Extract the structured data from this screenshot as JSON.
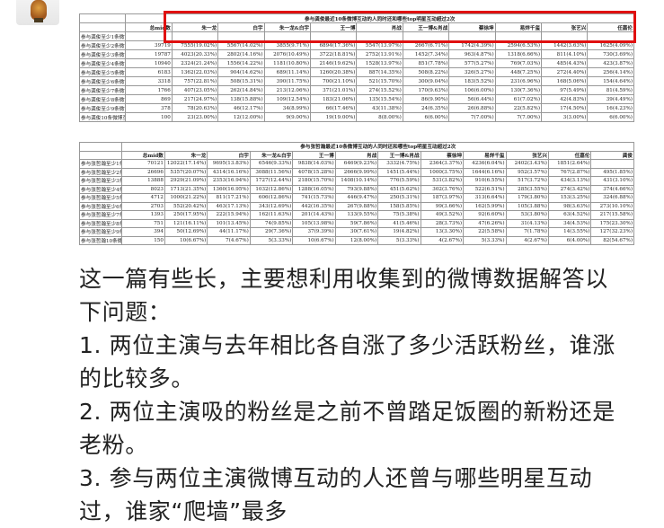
{
  "accent_color": "#e01010",
  "avatar": {
    "icon": "cartoon-character-avatar"
  },
  "table1": {
    "title": "参与龚俊最近10条微博互动的人同时还和哪些top明星互动超过2次",
    "headers": [
      "",
      "总mid数",
      "朱一龙",
      "白宇",
      "朱一龙&白宇",
      "王一博",
      "肖战",
      "王一博&肖战",
      "蔡徐坤",
      "易烊千玺",
      "张艺兴",
      "任嘉伦"
    ],
    "rows": [
      [
        "参与龚俊至少1条微博互动",
        "",
        "",
        "",
        "",
        "",
        "",
        "",
        "",
        "",
        "",
        ""
      ],
      [
        "参与龚俊至少2条微博互动",
        "39719",
        "7555(19.02%)",
        "5567(14.02%)",
        "3855(9.71%)",
        "6894(17.36%)",
        "5547(13.97%)",
        "2667(6.71%)",
        "1742(4.39%)",
        "2594(6.53%)",
        "1442(3.63%)",
        "1625(4.09%)"
      ],
      [
        "参与龚俊至少3条微博互动",
        "19787",
        "4023(20.33%)",
        "2802(14.16%)",
        "2076(10.49%)",
        "3722(18.81%)",
        "2752(13.91%)",
        "1452(7.34%)",
        "963(4.87%)",
        "1318(6.66%)",
        "811(4.10%)",
        "730(3.69%)"
      ],
      [
        "参与龚俊至少4条微博互动",
        "10940",
        "2324(21.24%)",
        "1556(14.22%)",
        "1181(10.80%)",
        "2146(19.62%)",
        "1528(13.97%)",
        "851(7.78%)",
        "577(5.27%)",
        "769(7.03%)",
        "485(4.43%)",
        "423(3.87%)"
      ],
      [
        "参与龚俊至少5条微博互动",
        "6183",
        "1362(22.03%)",
        "904(14.62%)",
        "689(11.14%)",
        "1260(20.38%)",
        "887(14.35%)",
        "508(8.22%)",
        "326(5.27%)",
        "448(7.25%)",
        "272(4.40%)",
        "256(4.14%)"
      ],
      [
        "参与龚俊至少6条微博互动",
        "3318",
        "757(22.81%)",
        "508(15.31%)",
        "390(11.75%)",
        "700(21.10%)",
        "521(15.70%)",
        "300(9.04%)",
        "183(5.52%)",
        "231(6.96%)",
        "168(5.06%)",
        "154(4.64%)"
      ],
      [
        "参与龚俊至少7条微博互动",
        "1766",
        "407(23.05%)",
        "262(14.84%)",
        "213(12.06%)",
        "371(21.01%)",
        "274(15.52%)",
        "170(9.63%)",
        "106(6.00%)",
        "130(7.36%)",
        "97(5.49%)",
        "81(4.59%)"
      ],
      [
        "参与龚俊至少8条微博互动",
        "869",
        "217(24.97%)",
        "138(15.88%)",
        "109(12.54%)",
        "183(21.06%)",
        "135(15.54%)",
        "86(9.90%)",
        "56(6.44%)",
        "61(7.02%)",
        "42(4.83%)",
        "39(4.49%)"
      ],
      [
        "参与龚俊至少9条微博互动",
        "378",
        "78(20.63%)",
        "46(12.17%)",
        "34(8.99%)",
        "66(17.46%)",
        "43(11.38%)",
        "24(6.35%)",
        "26(6.88%)",
        "22(5.82%)",
        "17(4.50%)",
        "16(4.23%)"
      ],
      [
        "参与龚俊10条微博互动",
        "100",
        "23(23.00%)",
        "12(12.00%)",
        "9(9.00%)",
        "19(19.00%)",
        "8(8.00%)",
        "6(6.00%)",
        "7(7.00%)",
        "7(7.00%)",
        "3(3.00%)",
        "6(6.00%)"
      ]
    ]
  },
  "table2": {
    "title": "参与张哲瀚最近10条微博互动的人同时还和哪些top明星互动超过2次",
    "headers": [
      "",
      "总mid数",
      "朱一龙",
      "白宇",
      "朱一龙&白宇",
      "王一博",
      "肖战",
      "王一博&肖战",
      "蔡徐坤",
      "易烊千玺",
      "张艺兴",
      "任嘉伦",
      "龚俊"
    ],
    "rows": [
      [
        "参与张哲瀚至少1条微博互动",
        "70121",
        "12022(17.14%)",
        "9695(13.83%)",
        "6546(9.33%)",
        "9838(14.03%)",
        "6469(9.23%)",
        "3332(4.75%)",
        "2364(3.37%)",
        "4236(6.04%)",
        "2402(3.43%)",
        "1851(2.64%)",
        ""
      ],
      [
        "参与张哲瀚至少2条微博互动",
        "26696",
        "5357(20.07%)",
        "4314(16.16%)",
        "3088(11.56%)",
        "4078(15.28%)",
        "2666(9.99%)",
        "1451(5.44%)",
        "1000(3.75%)",
        "1644(6.16%)",
        "952(3.57%)",
        "767(2.87%)",
        "495(1.85%)"
      ],
      [
        "参与张哲瀚至少3条微博互动",
        "13888",
        "2929(21.09%)",
        "2353(16.94%)",
        "1727(12.44%)",
        "2180(15.70%)",
        "1408(10.14%)",
        "776(5.59%)",
        "531(3.82%)",
        "910(6.55%)",
        "517(3.72%)",
        "434(3.13%)",
        "431(3.10%)"
      ],
      [
        "参与张哲瀚至少4条微博互动",
        "8023",
        "1713(21.35%)",
        "1360(16.95%)",
        "1032(12.86%)",
        "1288(16.05%)",
        "793(9.88%)",
        "451(5.62%)",
        "302(3.76%)",
        "522(6.51%)",
        "285(3.55%)",
        "274(3.42%)",
        "374(4.66%)"
      ],
      [
        "参与张哲瀚至少5条微博互动",
        "4712",
        "1000(21.22%)",
        "811(17.21%)",
        "606(12.86%)",
        "741(15.73%)",
        "446(9.47%)",
        "250(5.31%)",
        "187(3.97%)",
        "313(6.64%)",
        "179(3.80%)",
        "153(3.25%)",
        "324(6.88%)"
      ],
      [
        "参与张哲瀚至少6条微博互动",
        "2703",
        "552(20.42%)",
        "463(17.13%)",
        "343(12.69%)",
        "442(16.35%)",
        "267(9.88%)",
        "158(5.85%)",
        "99(3.66%)",
        "162(5.99%)",
        "105(3.88%)",
        "98(3.63%)",
        "273(10.10%)"
      ],
      [
        "参与张哲瀚至少7条微博互动",
        "1393",
        "250(17.95%)",
        "222(15.94%)",
        "162(11.63%)",
        "201(14.43%)",
        "133(9.55%)",
        "75(5.38%)",
        "49(3.52%)",
        "92(6.60%)",
        "53(3.80%)",
        "63(4.52%)",
        "217(15.58%)"
      ],
      [
        "参与张哲瀚至少8条微博互动",
        "751",
        "121(16.11%)",
        "101(13.45%)",
        "74(9.85%)",
        "105(13.98%)",
        "59(7.86%)",
        "41(5.46%)",
        "28(3.73%)",
        "47(6.26%)",
        "31(4.13%)",
        "34(4.53%)",
        "175(23.30%)"
      ],
      [
        "参与张哲瀚至少9条微博互动",
        "394",
        "50(12.69%)",
        "44(11.17%)",
        "29(7.36%)",
        "37(9.39%)",
        "30(7.61%)",
        "19(4.82%)",
        "13(3.30%)",
        "22(5.58%)",
        "7(1.78%)",
        "14(3.55%)",
        "127(32.23%)"
      ],
      [
        "参与张哲瀚10条微博互动",
        "150",
        "10(6.67%)",
        "7(4.67%)",
        "5(3.33%)",
        "10(6.67%)",
        "12(8.00%)",
        "5(3.33%)",
        "4(2.67%)",
        "5(3.33%)",
        "4(2.67%)",
        "6(4.00%)",
        "82(54.67%)"
      ]
    ]
  },
  "post": {
    "paragraphs": [
      "这一篇有些长，主要想利用收集到的微博数据解答以下问题：",
      "1. 两位主演与去年相比各自涨了多少活跃粉丝，谁涨的比较多。",
      "2. 两位主演吸的粉丝是之前不曾踏足饭圈的新粉还是老粉。",
      "3. 参与两位主演微博互动的人还曾与哪些明星互动过，谁家“爬墙”最多"
    ]
  }
}
